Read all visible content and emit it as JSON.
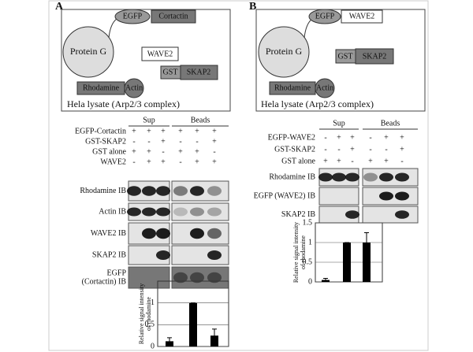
{
  "panels": [
    {
      "label": "A",
      "diagram": [
        "Protein G",
        "EGFP",
        "Cortactin",
        "WAVE2",
        "GST",
        "SKAP2",
        "Rhodamine",
        "Actin",
        "Hela lysate (Arp2/3 complex)"
      ],
      "groups": [
        "Sup",
        "Beads"
      ],
      "conditions": [
        {
          "name": "EGFP-Cortactin",
          "signs": [
            "+",
            "+",
            "+",
            "+",
            "+",
            "+"
          ]
        },
        {
          "name": "GST-SKAP2",
          "signs": [
            "-",
            "-",
            "+",
            "-",
            "-",
            "+"
          ]
        },
        {
          "name": "GST alone",
          "signs": [
            "+",
            "+",
            "-",
            "+",
            "+",
            "-"
          ]
        },
        {
          "name": "WAVE2",
          "signs": [
            "-",
            "+",
            "+",
            "-",
            "+",
            "+"
          ]
        }
      ],
      "blots": [
        [
          "Rhodamine IB"
        ],
        [
          "Actin IB"
        ],
        [
          "WAVE2 IB"
        ],
        [
          "SKAP2 IB"
        ],
        [
          "EGFP",
          "(Cortactin) IB"
        ]
      ],
      "chart": {
        "type": "bar",
        "ylabel": [
          "Relative signal intensity",
          "of rhodamine"
        ],
        "ylim": [
          0,
          1.5
        ],
        "yticks": [
          0,
          0.5,
          1
        ],
        "values": [
          0.12,
          1,
          0.25
        ],
        "errors": [
          0.08,
          0,
          0.15
        ]
      }
    },
    {
      "label": "B",
      "diagram": [
        "Protein G",
        "EGFP",
        "WAVE2",
        "GST",
        "SKAP2",
        "Rhodamine",
        "Actin",
        "Hela lysate (Arp2/3 complex)"
      ],
      "groups": [
        "Sup",
        "Beads"
      ],
      "conditions": [
        {
          "name": "EGFP-WAVE2",
          "signs": [
            "-",
            "+",
            "+",
            "-",
            "+",
            "+"
          ]
        },
        {
          "name": "GST-SKAP2",
          "signs": [
            "-",
            "-",
            "+",
            "-",
            "-",
            "+"
          ]
        },
        {
          "name": "GST alone",
          "signs": [
            "+",
            "+",
            "-",
            "+",
            "+",
            "-"
          ]
        }
      ],
      "blots": [
        [
          "Rhodamine IB"
        ],
        [
          "EGFP (WAVE2) IB"
        ],
        [
          "SKAP2 IB"
        ]
      ],
      "chart": {
        "type": "bar",
        "ylabel": [
          "Relative signal intensity",
          "of rhodamine"
        ],
        "ylim": [
          0,
          1.5
        ],
        "yticks": [
          0,
          0.5,
          1,
          1.5
        ],
        "values": [
          0.05,
          1,
          1
        ],
        "errors": [
          0.04,
          0,
          0.25
        ]
      }
    }
  ]
}
